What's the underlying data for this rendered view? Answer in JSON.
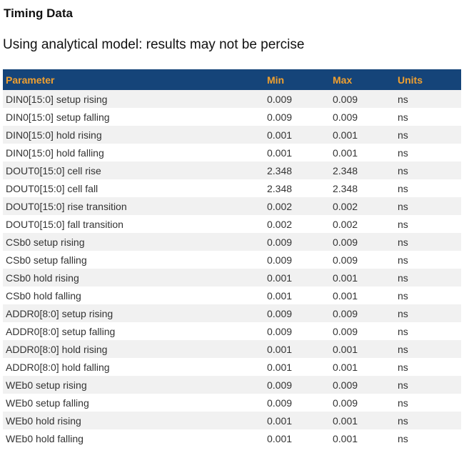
{
  "page": {
    "title": "Timing Data",
    "subtitle": "Using analytical model: results may not be percise"
  },
  "table": {
    "columns": [
      {
        "key": "parameter",
        "label": "Parameter"
      },
      {
        "key": "min",
        "label": "Min"
      },
      {
        "key": "max",
        "label": "Max"
      },
      {
        "key": "units",
        "label": "Units"
      }
    ],
    "rows": [
      {
        "parameter": "DIN0[15:0] setup rising",
        "min": "0.009",
        "max": "0.009",
        "units": "ns"
      },
      {
        "parameter": "DIN0[15:0] setup falling",
        "min": "0.009",
        "max": "0.009",
        "units": "ns"
      },
      {
        "parameter": "DIN0[15:0] hold rising",
        "min": "0.001",
        "max": "0.001",
        "units": "ns"
      },
      {
        "parameter": "DIN0[15:0] hold falling",
        "min": "0.001",
        "max": "0.001",
        "units": "ns"
      },
      {
        "parameter": "DOUT0[15:0] cell rise",
        "min": "2.348",
        "max": "2.348",
        "units": "ns"
      },
      {
        "parameter": "DOUT0[15:0] cell fall",
        "min": "2.348",
        "max": "2.348",
        "units": "ns"
      },
      {
        "parameter": "DOUT0[15:0] rise transition",
        "min": "0.002",
        "max": "0.002",
        "units": "ns"
      },
      {
        "parameter": "DOUT0[15:0] fall transition",
        "min": "0.002",
        "max": "0.002",
        "units": "ns"
      },
      {
        "parameter": "CSb0 setup rising",
        "min": "0.009",
        "max": "0.009",
        "units": "ns"
      },
      {
        "parameter": "CSb0 setup falling",
        "min": "0.009",
        "max": "0.009",
        "units": "ns"
      },
      {
        "parameter": "CSb0 hold rising",
        "min": "0.001",
        "max": "0.001",
        "units": "ns"
      },
      {
        "parameter": "CSb0 hold falling",
        "min": "0.001",
        "max": "0.001",
        "units": "ns"
      },
      {
        "parameter": "ADDR0[8:0] setup rising",
        "min": "0.009",
        "max": "0.009",
        "units": "ns"
      },
      {
        "parameter": "ADDR0[8:0] setup falling",
        "min": "0.009",
        "max": "0.009",
        "units": "ns"
      },
      {
        "parameter": "ADDR0[8:0] hold rising",
        "min": "0.001",
        "max": "0.001",
        "units": "ns"
      },
      {
        "parameter": "ADDR0[8:0] hold falling",
        "min": "0.001",
        "max": "0.001",
        "units": "ns"
      },
      {
        "parameter": "WEb0 setup rising",
        "min": "0.009",
        "max": "0.009",
        "units": "ns"
      },
      {
        "parameter": "WEb0 setup falling",
        "min": "0.009",
        "max": "0.009",
        "units": "ns"
      },
      {
        "parameter": "WEb0 hold rising",
        "min": "0.001",
        "max": "0.001",
        "units": "ns"
      },
      {
        "parameter": "WEb0 hold falling",
        "min": "0.001",
        "max": "0.001",
        "units": "ns"
      }
    ]
  },
  "colors": {
    "header_bg": "#154479",
    "header_text": "#f0a030",
    "alt_row_bg": "#f1f1f1",
    "row_text": "#333333"
  }
}
